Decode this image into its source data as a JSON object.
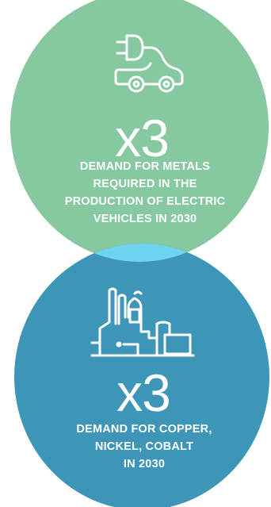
{
  "colors": {
    "top_circle": "#86c8a0",
    "bottom_circle": "#3d96b8",
    "overlap": "#6dd3ee",
    "text": "#ffffff"
  },
  "top_stat": {
    "icon": "electric-car-plug-icon",
    "multiplier": "x3",
    "lines": [
      "DEMAND FOR METALS",
      "REQUIRED IN THE",
      "PRODUCTION OF ELECTRIC",
      "VEHICLES IN 2030"
    ]
  },
  "bottom_stat": {
    "icon": "factory-icon",
    "multiplier": "x3",
    "lines": [
      "DEMAND FOR COPPER,",
      "NICKEL, COBALT",
      "IN 2030"
    ]
  }
}
